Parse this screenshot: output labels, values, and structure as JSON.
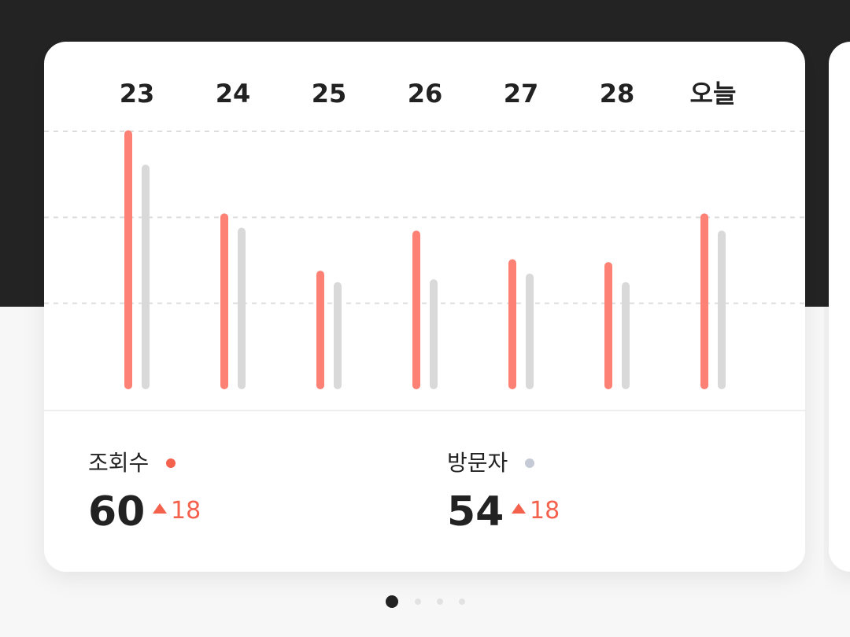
{
  "chart_data": {
    "type": "bar",
    "categories": [
      "23",
      "24",
      "25",
      "26",
      "27",
      "28",
      "오늘"
    ],
    "series": [
      {
        "name": "조회수",
        "color": "#fd8174",
        "values": [
          89,
          60,
          40,
          54,
          44,
          43,
          60
        ],
        "change": 18
      },
      {
        "name": "방문자",
        "color": "#d9d9d9",
        "values": [
          77,
          55,
          36,
          37,
          39,
          36,
          54
        ],
        "change": 18
      }
    ],
    "ylim": [
      0,
      90
    ],
    "yticks": [
      30,
      60,
      90
    ],
    "grid": true
  }
}
